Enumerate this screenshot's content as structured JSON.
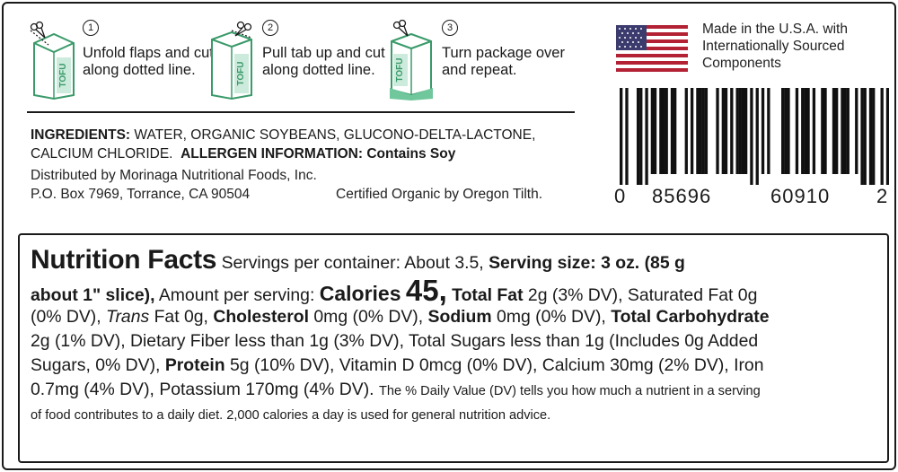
{
  "instructions": [
    {
      "num": "1",
      "text": "Unfold flaps and cut along dotted line.",
      "pkg_text": "TOFU"
    },
    {
      "num": "2",
      "text": "Pull tab up and cut along dotted line.",
      "pkg_text": "TOFU"
    },
    {
      "num": "3",
      "text": "Turn package over and repeat.",
      "pkg_text": "TOFU"
    }
  ],
  "ingredients": {
    "label": "INGREDIENTS:",
    "text_line1": "WATER, ORGANIC SOYBEANS, GLUCONO-DELTA-LACTONE,",
    "text_line2": "CALCIUM CHLORIDE.",
    "allergen_label": "ALLERGEN INFORMATION: Contains Soy"
  },
  "distributor": {
    "line1": "Distributed by Morinaga Nutritional Foods, Inc.",
    "address": "P.O. Box 7969, Torrance, CA 90504",
    "certification": "Certified Organic by Oregon Tilth."
  },
  "origin": {
    "text": "Made in the U.S.A. with Internationally Sourced Components",
    "flag_icon": "us-flag-icon"
  },
  "barcode": {
    "first_digit": "0",
    "left_group": "85696",
    "right_group": "60910",
    "check_digit": "2"
  },
  "nutrition": {
    "title": "Nutrition Facts",
    "servings": "Servings per container: About 3.5,",
    "serving_size_a": "Serving size: 3 oz. (85 g",
    "serving_size_b": "about 1\" slice),",
    "amount_per": "Amount per serving:",
    "calories_label": "Calories",
    "calories_value": "45,",
    "total_fat_label": "Total Fat",
    "total_fat_value": "2g (3% DV), Saturated Fat 0g",
    "sat_fat_dv": "(0% DV),",
    "trans_label": "Trans",
    "trans_value": "Fat 0g,",
    "cholesterol_label": "Cholesterol",
    "cholesterol_value": "0mg (0% DV),",
    "sodium_label": "Sodium",
    "sodium_value": "0mg (0% DV),",
    "carb_label": "Total Carbohydrate",
    "carb_value": "2g (1% DV), Dietary Fiber less than 1g (3% DV), Total Sugars less than 1g (Includes 0g Added",
    "sugars_tail": "Sugars, 0% DV),",
    "protein_label": "Protein",
    "protein_value": "5g (10% DV), Vitamin D 0mcg (0% DV), Calcium 30mg (2% DV), Iron",
    "iron_tail": "0.7mg (4% DV), Potassium 170mg (4% DV).",
    "footnote_a": "The % Daily Value (DV) tells you how much a nutrient in a serving",
    "footnote_b": "of food contributes to a daily diet. 2,000 calories a day is used for general nutrition advice."
  },
  "colors": {
    "package_green": "#6fc79b",
    "package_outline": "#3a9a6a",
    "flag_red": "#b22234",
    "flag_blue": "#3c3b6e",
    "text": "#1a1a1a"
  }
}
